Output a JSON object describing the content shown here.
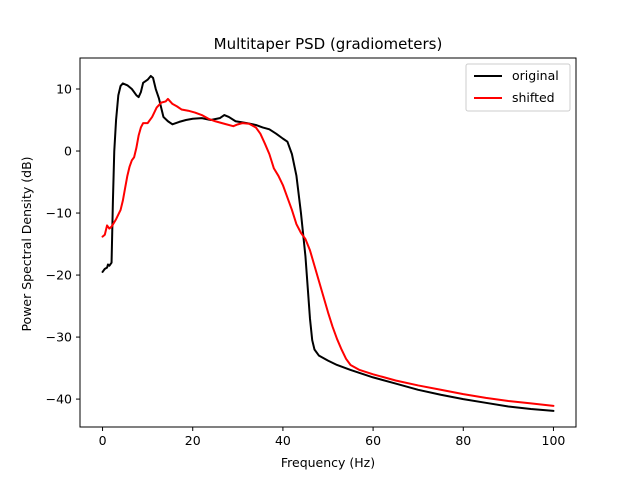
{
  "chart_data": {
    "type": "line",
    "title": "Multitaper PSD (gradiometers)",
    "xlabel": "Frequency (Hz)",
    "ylabel": "Power Spectral Density (dB)",
    "xlim": [
      -5,
      105
    ],
    "ylim": [
      -44.5,
      15
    ],
    "xticks": [
      0,
      20,
      40,
      60,
      80,
      100
    ],
    "yticks": [
      -40,
      -30,
      -20,
      -10,
      0,
      10
    ],
    "xtick_labels": [
      "0",
      "20",
      "40",
      "60",
      "80",
      "100"
    ],
    "ytick_labels": [
      "−40",
      "−30",
      "−20",
      "−10",
      "0",
      "10"
    ],
    "grid": false,
    "legend_position": "top-right",
    "series": [
      {
        "name": "original",
        "color": "#000000",
        "points": [
          [
            0.0,
            -19.5
          ],
          [
            0.5,
            -19.0
          ],
          [
            1.0,
            -18.8
          ],
          [
            1.2,
            -18.3
          ],
          [
            1.5,
            -18.5
          ],
          [
            2.0,
            -18.0
          ],
          [
            2.3,
            -8.0
          ],
          [
            2.6,
            0.0
          ],
          [
            3.0,
            5.0
          ],
          [
            3.5,
            9.0
          ],
          [
            4.0,
            10.5
          ],
          [
            4.5,
            10.9
          ],
          [
            5.5,
            10.6
          ],
          [
            6.5,
            10.0
          ],
          [
            7.5,
            9.0
          ],
          [
            8.0,
            8.7
          ],
          [
            8.5,
            9.5
          ],
          [
            9.0,
            11.0
          ],
          [
            10.0,
            11.5
          ],
          [
            10.7,
            12.1
          ],
          [
            11.2,
            11.8
          ],
          [
            11.8,
            10.0
          ],
          [
            12.5,
            8.5
          ],
          [
            13.0,
            7.0
          ],
          [
            13.5,
            5.5
          ],
          [
            14.5,
            4.8
          ],
          [
            15.5,
            4.3
          ],
          [
            17.0,
            4.7
          ],
          [
            18.5,
            5.0
          ],
          [
            20.0,
            5.2
          ],
          [
            22.0,
            5.3
          ],
          [
            24.0,
            5.0
          ],
          [
            26.0,
            5.3
          ],
          [
            27.0,
            5.8
          ],
          [
            28.0,
            5.5
          ],
          [
            29.5,
            4.8
          ],
          [
            32.0,
            4.5
          ],
          [
            34.0,
            4.2
          ],
          [
            35.5,
            3.8
          ],
          [
            37.0,
            3.5
          ],
          [
            38.5,
            2.8
          ],
          [
            40.0,
            2.0
          ],
          [
            41.0,
            1.5
          ],
          [
            42.0,
            -0.5
          ],
          [
            43.0,
            -4.0
          ],
          [
            44.0,
            -10.0
          ],
          [
            45.0,
            -17.0
          ],
          [
            45.5,
            -22.0
          ],
          [
            46.0,
            -27.0
          ],
          [
            46.5,
            -30.5
          ],
          [
            47.0,
            -32.0
          ],
          [
            48.0,
            -33.0
          ],
          [
            50.0,
            -33.8
          ],
          [
            52.0,
            -34.5
          ],
          [
            55.0,
            -35.3
          ],
          [
            60.0,
            -36.5
          ],
          [
            65.0,
            -37.5
          ],
          [
            70.0,
            -38.5
          ],
          [
            75.0,
            -39.3
          ],
          [
            80.0,
            -40.0
          ],
          [
            85.0,
            -40.6
          ],
          [
            90.0,
            -41.2
          ],
          [
            95.0,
            -41.6
          ],
          [
            100.0,
            -41.9
          ]
        ]
      },
      {
        "name": "shifted",
        "color": "#ff0000",
        "points": [
          [
            0.0,
            -13.8
          ],
          [
            0.5,
            -13.5
          ],
          [
            1.0,
            -12.0
          ],
          [
            1.5,
            -12.5
          ],
          [
            2.0,
            -12.2
          ],
          [
            3.0,
            -11.0
          ],
          [
            4.0,
            -9.5
          ],
          [
            4.5,
            -8.0
          ],
          [
            5.0,
            -6.0
          ],
          [
            5.5,
            -4.0
          ],
          [
            6.0,
            -2.5
          ],
          [
            6.5,
            -1.5
          ],
          [
            7.0,
            -1.0
          ],
          [
            7.5,
            0.5
          ],
          [
            8.0,
            2.5
          ],
          [
            8.5,
            3.8
          ],
          [
            9.0,
            4.5
          ],
          [
            10.0,
            4.5
          ],
          [
            11.0,
            5.5
          ],
          [
            12.0,
            7.0
          ],
          [
            13.0,
            7.8
          ],
          [
            14.0,
            8.0
          ],
          [
            14.5,
            8.4
          ],
          [
            15.0,
            8.0
          ],
          [
            15.5,
            7.6
          ],
          [
            16.5,
            7.2
          ],
          [
            17.5,
            6.7
          ],
          [
            19.0,
            6.5
          ],
          [
            20.5,
            6.2
          ],
          [
            22.0,
            5.8
          ],
          [
            23.5,
            5.2
          ],
          [
            25.0,
            4.8
          ],
          [
            27.0,
            4.4
          ],
          [
            29.0,
            4.0
          ],
          [
            30.0,
            4.3
          ],
          [
            31.0,
            4.5
          ],
          [
            32.5,
            4.4
          ],
          [
            34.0,
            3.8
          ],
          [
            35.0,
            2.8
          ],
          [
            36.0,
            1.2
          ],
          [
            37.0,
            -0.5
          ],
          [
            38.0,
            -2.8
          ],
          [
            39.0,
            -4.0
          ],
          [
            40.0,
            -5.5
          ],
          [
            41.0,
            -7.5
          ],
          [
            42.0,
            -9.5
          ],
          [
            43.0,
            -11.8
          ],
          [
            44.0,
            -13.2
          ],
          [
            45.0,
            -14.2
          ],
          [
            46.0,
            -16.0
          ],
          [
            47.0,
            -18.5
          ],
          [
            48.0,
            -21.0
          ],
          [
            49.0,
            -23.5
          ],
          [
            50.0,
            -26.0
          ],
          [
            51.0,
            -28.3
          ],
          [
            52.0,
            -30.3
          ],
          [
            53.0,
            -32.0
          ],
          [
            54.0,
            -33.5
          ],
          [
            55.0,
            -34.5
          ],
          [
            57.0,
            -35.3
          ],
          [
            60.0,
            -36.0
          ],
          [
            65.0,
            -37.0
          ],
          [
            70.0,
            -37.8
          ],
          [
            75.0,
            -38.5
          ],
          [
            80.0,
            -39.2
          ],
          [
            85.0,
            -39.8
          ],
          [
            90.0,
            -40.3
          ],
          [
            95.0,
            -40.7
          ],
          [
            100.0,
            -41.1
          ]
        ]
      }
    ]
  }
}
